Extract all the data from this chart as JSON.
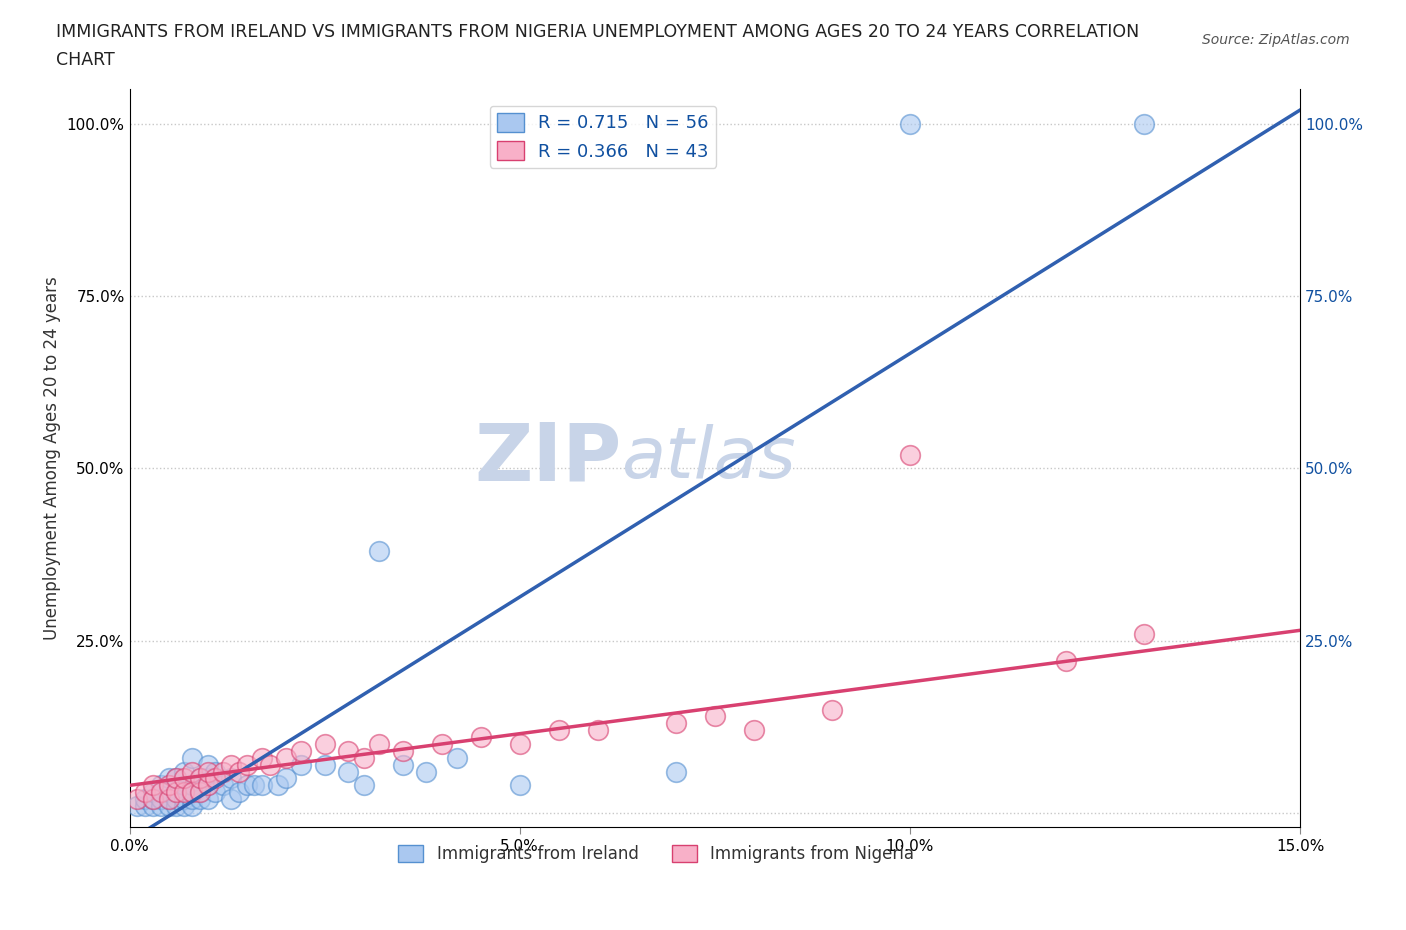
{
  "title_line1": "IMMIGRANTS FROM IRELAND VS IMMIGRANTS FROM NIGERIA UNEMPLOYMENT AMONG AGES 20 TO 24 YEARS CORRELATION",
  "title_line2": "CHART",
  "source_text": "Source: ZipAtlas.com",
  "ylabel": "Unemployment Among Ages 20 to 24 years",
  "xlim": [
    0.0,
    0.15
  ],
  "ylim": [
    -0.02,
    1.05
  ],
  "xticks": [
    0.0,
    0.05,
    0.1,
    0.15
  ],
  "xticklabels": [
    "0.0%",
    "5.0%",
    "10.0%",
    "15.0%"
  ],
  "yticks": [
    0.0,
    0.25,
    0.5,
    0.75,
    1.0
  ],
  "yleft_labels": [
    "",
    "25.0%",
    "50.0%",
    "75.0%",
    "100.0%"
  ],
  "yright_labels": [
    "",
    "25.0%",
    "50.0%",
    "75.0%",
    "100.0%"
  ],
  "ireland_color": "#aac8f0",
  "ireland_edge_color": "#5590d0",
  "nigeria_color": "#f8b0c8",
  "nigeria_edge_color": "#d84070",
  "ireland_line_color": "#3060b0",
  "nigeria_line_color": "#d84070",
  "ireland_R": 0.715,
  "ireland_N": 56,
  "nigeria_R": 0.366,
  "nigeria_N": 43,
  "legend_R_color": "#1050a0",
  "watermark_zip": "ZIP",
  "watermark_atlas": "atlas",
  "watermark_color": "#c8d4e8",
  "background_color": "#ffffff",
  "grid_color": "#c8c8c8",
  "ireland_line_x0": 0.0,
  "ireland_line_y0": -0.04,
  "ireland_line_x1": 0.15,
  "ireland_line_y1": 1.02,
  "nigeria_line_x0": 0.0,
  "nigeria_line_y0": 0.04,
  "nigeria_line_x1": 0.15,
  "nigeria_line_y1": 0.265,
  "ireland_x": [
    0.001,
    0.002,
    0.002,
    0.003,
    0.003,
    0.003,
    0.004,
    0.004,
    0.004,
    0.005,
    0.005,
    0.005,
    0.005,
    0.006,
    0.006,
    0.006,
    0.006,
    0.007,
    0.007,
    0.007,
    0.007,
    0.008,
    0.008,
    0.008,
    0.008,
    0.008,
    0.009,
    0.009,
    0.009,
    0.01,
    0.01,
    0.01,
    0.01,
    0.011,
    0.011,
    0.012,
    0.013,
    0.013,
    0.014,
    0.015,
    0.016,
    0.017,
    0.019,
    0.02,
    0.022,
    0.025,
    0.028,
    0.03,
    0.032,
    0.035,
    0.038,
    0.042,
    0.05,
    0.07,
    0.1,
    0.13
  ],
  "ireland_y": [
    0.01,
    0.01,
    0.02,
    0.01,
    0.02,
    0.03,
    0.01,
    0.02,
    0.04,
    0.01,
    0.02,
    0.03,
    0.05,
    0.01,
    0.02,
    0.03,
    0.05,
    0.01,
    0.02,
    0.04,
    0.06,
    0.01,
    0.02,
    0.03,
    0.04,
    0.08,
    0.02,
    0.03,
    0.05,
    0.02,
    0.04,
    0.05,
    0.07,
    0.03,
    0.06,
    0.04,
    0.02,
    0.05,
    0.03,
    0.04,
    0.04,
    0.04,
    0.04,
    0.05,
    0.07,
    0.07,
    0.06,
    0.04,
    0.38,
    0.07,
    0.06,
    0.08,
    0.04,
    0.06,
    1.0,
    1.0
  ],
  "nigeria_x": [
    0.001,
    0.002,
    0.003,
    0.003,
    0.004,
    0.005,
    0.005,
    0.006,
    0.006,
    0.007,
    0.007,
    0.008,
    0.008,
    0.009,
    0.009,
    0.01,
    0.01,
    0.011,
    0.012,
    0.013,
    0.014,
    0.015,
    0.017,
    0.018,
    0.02,
    0.022,
    0.025,
    0.028,
    0.03,
    0.032,
    0.035,
    0.04,
    0.045,
    0.05,
    0.055,
    0.06,
    0.07,
    0.075,
    0.08,
    0.09,
    0.1,
    0.12,
    0.13
  ],
  "nigeria_y": [
    0.02,
    0.03,
    0.02,
    0.04,
    0.03,
    0.02,
    0.04,
    0.03,
    0.05,
    0.03,
    0.05,
    0.03,
    0.06,
    0.03,
    0.05,
    0.04,
    0.06,
    0.05,
    0.06,
    0.07,
    0.06,
    0.07,
    0.08,
    0.07,
    0.08,
    0.09,
    0.1,
    0.09,
    0.08,
    0.1,
    0.09,
    0.1,
    0.11,
    0.1,
    0.12,
    0.12,
    0.13,
    0.14,
    0.12,
    0.15,
    0.52,
    0.22,
    0.26
  ]
}
